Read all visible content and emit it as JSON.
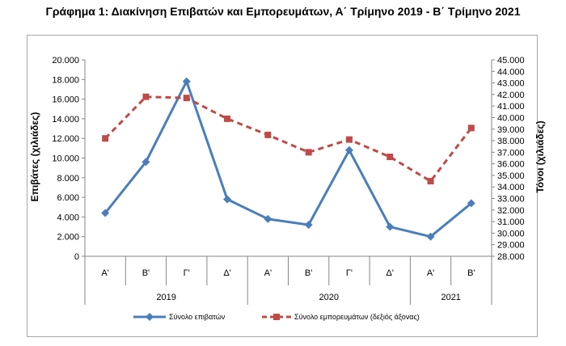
{
  "title": "Γράφημα 1: Διακίνηση Επιβατών και Εμπορευμάτων, Α΄ Τρίμηνο 2019 - Β΄ Τρίμηνο 2021",
  "chart_data": {
    "type": "line",
    "categories": [
      "Α'",
      "Β'",
      "Γ'",
      "Δ'",
      "Α'",
      "Β'",
      "Γ'",
      "Δ'",
      "Α'",
      "Β'"
    ],
    "year_groups": [
      {
        "label": "2019",
        "span": 4
      },
      {
        "label": "2020",
        "span": 4
      },
      {
        "label": "2021",
        "span": 2
      }
    ],
    "ylabel_left": "Επιβάτες (χιλιάδες)",
    "ylabel_right": "Τόνοι (χιλιάδες)",
    "ylim_left": [
      0,
      20000
    ],
    "ylim_right": [
      28000,
      45000
    ],
    "left_ticks": [
      "0",
      "2.000",
      "4.000",
      "6.000",
      "8.000",
      "10.000",
      "12.000",
      "14.000",
      "16.000",
      "18.000",
      "20.000"
    ],
    "right_ticks": [
      "28.000",
      "29.000",
      "30.000",
      "31.000",
      "32.000",
      "33.000",
      "34.000",
      "35.000",
      "36.000",
      "37.000",
      "38.000",
      "39.000",
      "40.000",
      "41.000",
      "42.000",
      "43.000",
      "44.000",
      "45.000"
    ],
    "series": [
      {
        "name": "Σύνολο επιβατών",
        "axis": "left",
        "color": "#4a7ebb",
        "marker": "diamond",
        "dash": "solid",
        "values": [
          4400,
          9600,
          17800,
          5800,
          3800,
          3200,
          10800,
          3000,
          2000,
          5400
        ]
      },
      {
        "name": "Σύνολο εμπορευμάτων (δεξιός άξονας)",
        "axis": "right",
        "color": "#be4b48",
        "marker": "square",
        "dash": "dashed",
        "values": [
          38200,
          41800,
          41700,
          39900,
          38500,
          37000,
          38100,
          36600,
          34500,
          39100
        ]
      }
    ],
    "grid": false,
    "legend_position": "bottom"
  }
}
